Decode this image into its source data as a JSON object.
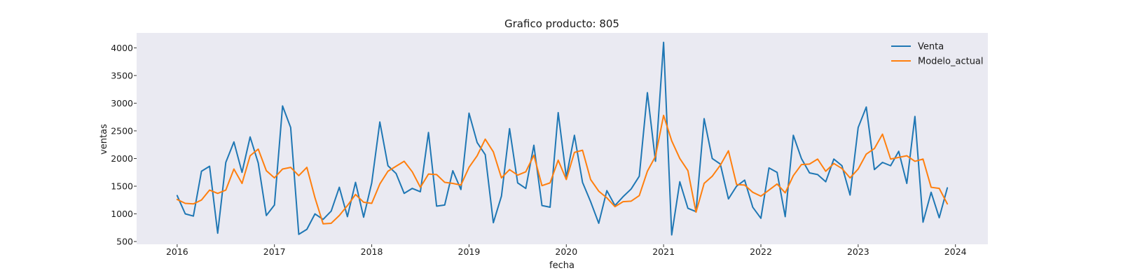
{
  "chart_data": {
    "type": "line",
    "title": "Grafico producto: 805",
    "xlabel": "fecha",
    "ylabel": "ventas",
    "x_start": "2016-01",
    "x_frequency": "monthly",
    "xlim": [
      "2015-08",
      "2024-05"
    ],
    "ylim": [
      450,
      4270
    ],
    "xticks": [
      "2016",
      "2017",
      "2018",
      "2019",
      "2020",
      "2021",
      "2022",
      "2023",
      "2024"
    ],
    "yticks": [
      500,
      1000,
      1500,
      2000,
      2500,
      3000,
      3500,
      4000
    ],
    "grid": false,
    "legend_position": "top-right",
    "series": [
      {
        "name": "Venta",
        "color": "#1f77b4",
        "values": [
          1330,
          1000,
          960,
          1770,
          1860,
          650,
          1930,
          2300,
          1750,
          2390,
          1920,
          970,
          1160,
          2950,
          2560,
          630,
          720,
          1000,
          900,
          1050,
          1480,
          950,
          1570,
          940,
          1560,
          2660,
          1870,
          1730,
          1370,
          1460,
          1400,
          2470,
          1140,
          1160,
          1780,
          1440,
          2820,
          2290,
          2070,
          840,
          1320,
          2540,
          1560,
          1460,
          2240,
          1150,
          1120,
          2830,
          1660,
          2420,
          1570,
          1220,
          830,
          1420,
          1150,
          1310,
          1450,
          1680,
          3190,
          1950,
          4100,
          620,
          1580,
          1100,
          1040,
          2720,
          2000,
          1900,
          1270,
          1500,
          1610,
          1120,
          920,
          1830,
          1750,
          950,
          2420,
          2000,
          1740,
          1710,
          1580,
          1990,
          1870,
          1340,
          2560,
          2930,
          1800,
          1930,
          1870,
          2130,
          1550,
          2760,
          850,
          1390,
          930,
          1470
        ]
      },
      {
        "name": "Modelo_actual",
        "color": "#ff7f0e",
        "values": [
          1260,
          1190,
          1180,
          1250,
          1430,
          1370,
          1430,
          1810,
          1550,
          2050,
          2170,
          1780,
          1650,
          1810,
          1840,
          1690,
          1840,
          1290,
          820,
          830,
          970,
          1150,
          1350,
          1210,
          1190,
          1540,
          1770,
          1860,
          1950,
          1760,
          1480,
          1720,
          1710,
          1570,
          1550,
          1520,
          1840,
          2050,
          2350,
          2120,
          1650,
          1800,
          1700,
          1760,
          2060,
          1510,
          1560,
          1970,
          1620,
          2110,
          2150,
          1620,
          1410,
          1290,
          1130,
          1220,
          1230,
          1330,
          1770,
          2040,
          2780,
          2320,
          2000,
          1780,
          1030,
          1550,
          1680,
          1880,
          2140,
          1530,
          1520,
          1390,
          1320,
          1430,
          1540,
          1380,
          1690,
          1890,
          1900,
          1990,
          1770,
          1910,
          1820,
          1650,
          1810,
          2080,
          2180,
          2440,
          1990,
          2020,
          2050,
          1950,
          1990,
          1480,
          1460,
          1180
        ]
      }
    ]
  }
}
